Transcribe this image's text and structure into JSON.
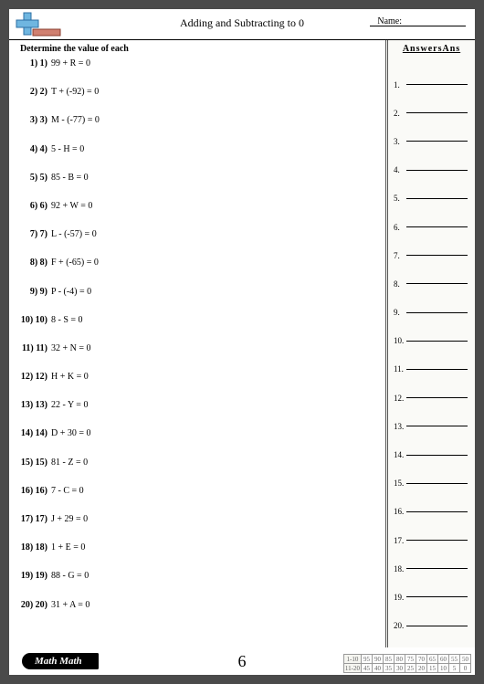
{
  "header": {
    "title": "Adding and Subtracting to 0",
    "name_label": "Name:",
    "logo": {
      "plus_fill": "#6fb6e0",
      "plus_stroke": "#2c6fa3",
      "minus_fill": "#d08070",
      "minus_stroke": "#8a3d2e"
    }
  },
  "instruction": "Determine the value of each",
  "problems": [
    {
      "n": "1) 1)",
      "expr": "99 + R = 0"
    },
    {
      "n": "2) 2)",
      "expr": "T + (-92) = 0"
    },
    {
      "n": "3) 3)",
      "expr": "M - (-77) = 0"
    },
    {
      "n": "4) 4)",
      "expr": "5 - H = 0"
    },
    {
      "n": "5) 5)",
      "expr": "85 - B = 0"
    },
    {
      "n": "6) 6)",
      "expr": "92 + W = 0"
    },
    {
      "n": "7) 7)",
      "expr": "L - (-57) = 0"
    },
    {
      "n": "8) 8)",
      "expr": "F + (-65) = 0"
    },
    {
      "n": "9) 9)",
      "expr": "P - (-4) = 0"
    },
    {
      "n": "10) 10)",
      "expr": "8 - S = 0"
    },
    {
      "n": "11) 11)",
      "expr": "32 + N = 0"
    },
    {
      "n": "12) 12)",
      "expr": "H + K = 0"
    },
    {
      "n": "13) 13)",
      "expr": "22 - Y = 0"
    },
    {
      "n": "14) 14)",
      "expr": "D + 30 = 0"
    },
    {
      "n": "15) 15)",
      "expr": "81 - Z = 0"
    },
    {
      "n": "16) 16)",
      "expr": "7 - C = 0"
    },
    {
      "n": "17) 17)",
      "expr": "J + 29 = 0"
    },
    {
      "n": "18) 18)",
      "expr": "1 + E = 0"
    },
    {
      "n": "19) 19)",
      "expr": "88 - G = 0"
    },
    {
      "n": "20) 20)",
      "expr": "31 + A = 0"
    }
  ],
  "answers": {
    "header": "AnswersAns",
    "count": 20
  },
  "footer": {
    "badge": "Math Math",
    "page_number": "6",
    "score": {
      "row_labels": [
        "1-10",
        "11-20"
      ],
      "r1": [
        "95",
        "90",
        "85",
        "80",
        "75",
        "70",
        "65",
        "60",
        "55",
        "50"
      ],
      "r2": [
        "45",
        "40",
        "35",
        "30",
        "25",
        "20",
        "15",
        "10",
        "5",
        "0"
      ]
    }
  },
  "colors": {
    "page_bg": "#ffffff",
    "body_bg": "#4a4a4a",
    "ans_panel_bg": "#fafaf7",
    "border": "#000000"
  }
}
